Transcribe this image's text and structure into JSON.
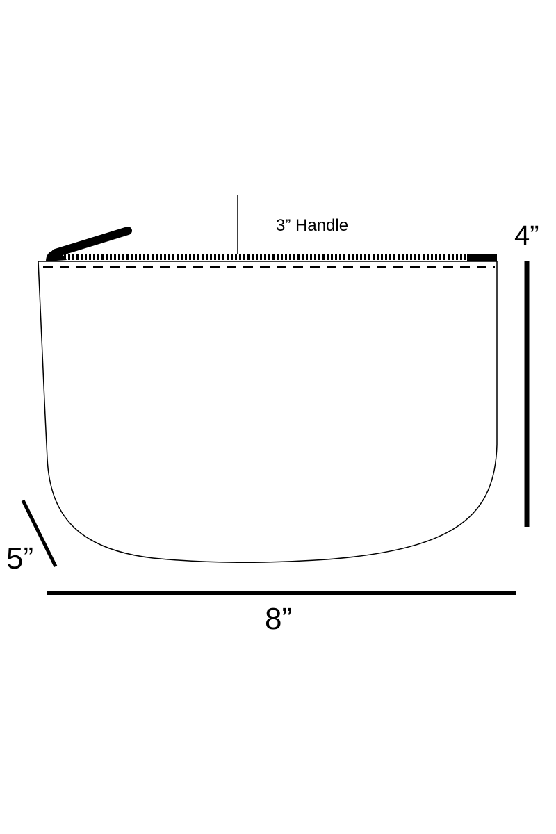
{
  "labels": {
    "handle": "3” Handle",
    "height": "4”",
    "depth": "5”",
    "width": "8”"
  },
  "colors": {
    "ink": "#000000",
    "background": "#ffffff"
  }
}
